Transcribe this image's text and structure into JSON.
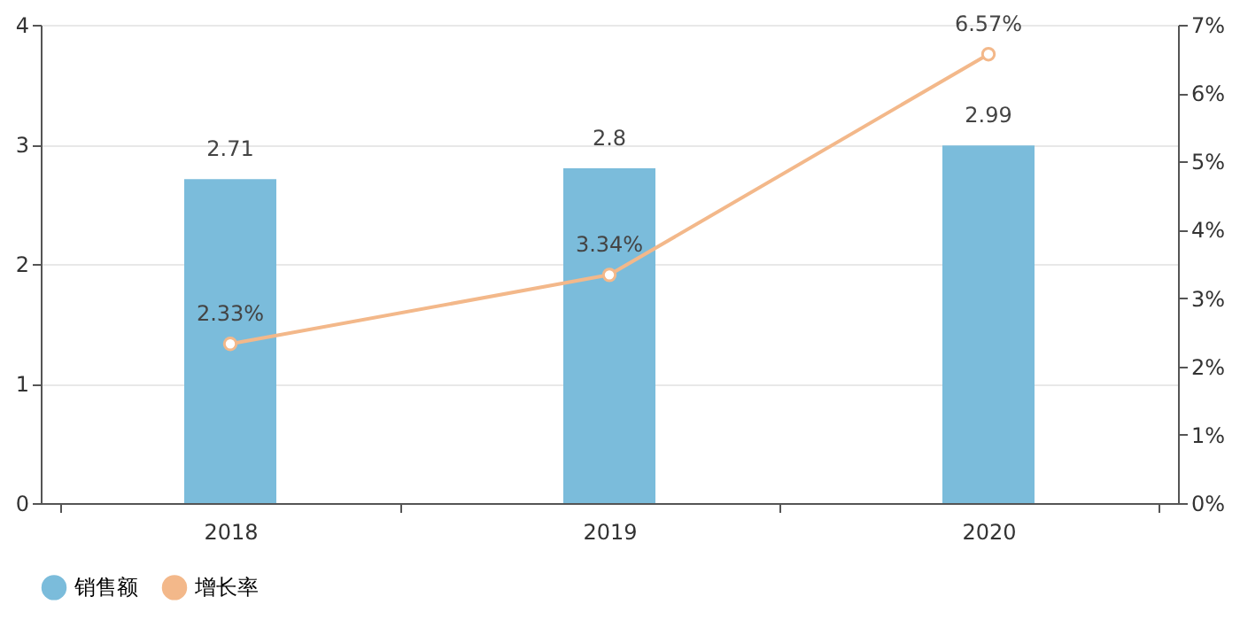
{
  "chart_data": {
    "type": "bar",
    "categories": [
      "2018",
      "2019",
      "2020"
    ],
    "series": [
      {
        "name": "销售额",
        "color": "#7bbcdb",
        "values": [
          2.71,
          2.8,
          2.99
        ],
        "value_labels": [
          "2.71",
          "2.8",
          "2.99"
        ]
      },
      {
        "name": "增长率",
        "type": "line",
        "axis": "y2",
        "color": "#f3b88a",
        "values": [
          2.33,
          3.34,
          6.57
        ],
        "value_labels": [
          "2.33%",
          "3.34%",
          "6.57%"
        ]
      }
    ],
    "ylim": [
      0,
      4
    ],
    "yticks": [
      0,
      1,
      2,
      3,
      4
    ],
    "y2lim": [
      0,
      7
    ],
    "y2ticks": [
      {
        "value": 0,
        "label": "0%"
      },
      {
        "value": 1,
        "label": "1%"
      },
      {
        "value": 2,
        "label": "2%"
      },
      {
        "value": 3,
        "label": "3%"
      },
      {
        "value": 4,
        "label": "4%"
      },
      {
        "value": 5,
        "label": "5%"
      },
      {
        "value": 6,
        "label": "6%"
      },
      {
        "value": 7,
        "label": "7%"
      }
    ],
    "grid": "y",
    "legend": "bottom",
    "marker": "circle"
  }
}
